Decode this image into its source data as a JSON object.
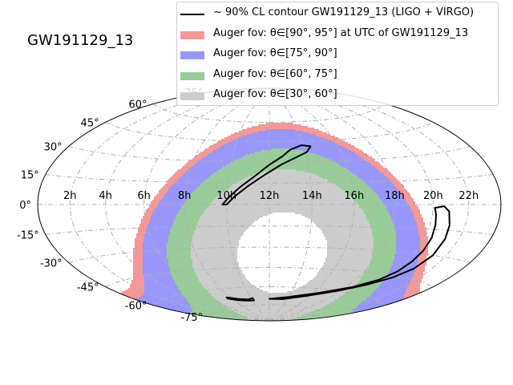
{
  "title": "GW191129_13",
  "colors": {
    "band_90_95": "#f89896",
    "band_75_90": "#9797fb",
    "band_60_75": "#98cc98",
    "band_30_60": "#cccccc",
    "contour": "#000000",
    "grid": "#b0b0b0"
  },
  "legend": [
    {
      "key": "contour",
      "type": "line",
      "label": "~ 90% CL contour GW191129_13 (LIGO + VIRGO)"
    },
    {
      "key": "band_90_95",
      "type": "patch",
      "label": "Auger fov: θ∈[90°, 95°] at UTC of GW191129_13"
    },
    {
      "key": "band_75_90",
      "type": "patch",
      "label": "Auger fov: θ∈[75°, 90°]"
    },
    {
      "key": "band_60_75",
      "type": "patch",
      "label": "Auger fov: θ∈[60°, 75°]"
    },
    {
      "key": "band_30_60",
      "type": "patch",
      "label": "Auger fov: θ∈[30°, 60°]"
    }
  ],
  "chart_data": {
    "type": "sky-map",
    "projection": "hammer-aitoff",
    "title": "GW191129_13",
    "ra_ticks": [
      "2h",
      "4h",
      "6h",
      "8h",
      "10h",
      "12h",
      "14h",
      "16h",
      "18h",
      "20h",
      "22h"
    ],
    "dec_ticks": [
      "-75°",
      "-60°",
      "-45°",
      "-30°",
      "-15°",
      "0°",
      "15°",
      "30°",
      "45°",
      "60°",
      "75°"
    ],
    "grid": true,
    "legend_position": "top-right",
    "auger_fov": {
      "center_ra_h": 12.7,
      "center_dec_deg": -35.2,
      "bands": [
        {
          "key": "band_90_95",
          "theta_min_deg": 90,
          "theta_max_deg": 95
        },
        {
          "key": "band_75_90",
          "theta_min_deg": 75,
          "theta_max_deg": 90
        },
        {
          "key": "band_60_75",
          "theta_min_deg": 60,
          "theta_max_deg": 75
        },
        {
          "key": "band_30_60",
          "theta_min_deg": 30,
          "theta_max_deg": 60
        }
      ]
    },
    "contour_regions": [
      {
        "name": "arc",
        "points": [
          [
            9.8,
            0
          ],
          [
            10.1,
            5
          ],
          [
            10.6,
            12
          ],
          [
            11.3,
            20
          ],
          [
            12,
            28
          ],
          [
            12.7,
            34
          ],
          [
            13.2,
            39
          ],
          [
            13.9,
            42
          ],
          [
            14.4,
            41
          ],
          [
            14.1,
            37
          ],
          [
            13.4,
            33
          ],
          [
            12.6,
            28
          ],
          [
            11.8,
            21
          ],
          [
            11.0,
            13
          ],
          [
            10.4,
            6
          ],
          [
            10.0,
            0
          ]
        ]
      },
      {
        "name": "east-strip",
        "points": [
          [
            20.1,
            -2
          ],
          [
            20.2,
            -6
          ],
          [
            20.3,
            -12
          ],
          [
            20.4,
            -20
          ],
          [
            20.4,
            -28
          ],
          [
            20.3,
            -35
          ],
          [
            20.1,
            -42
          ],
          [
            19.6,
            -49
          ],
          [
            18.5,
            -56
          ],
          [
            16.5,
            -63
          ],
          [
            14.0,
            -68
          ],
          [
            12.0,
            -70
          ],
          [
            13.5,
            -70
          ],
          [
            15.8,
            -66
          ],
          [
            17.8,
            -60
          ],
          [
            19.3,
            -53
          ],
          [
            20.3,
            -46
          ],
          [
            20.9,
            -39
          ],
          [
            21.2,
            -30
          ],
          [
            21.2,
            -20
          ],
          [
            21.1,
            -12
          ],
          [
            20.9,
            -4
          ],
          [
            20.6,
            -1
          ]
        ]
      },
      {
        "name": "south-blob",
        "points": [
          [
            7.6,
            -67
          ],
          [
            8.6,
            -69
          ],
          [
            9.6,
            -70
          ],
          [
            10.2,
            -69
          ],
          [
            10.2,
            -71
          ],
          [
            9.4,
            -71
          ],
          [
            8.4,
            -70
          ],
          [
            7.6,
            -68
          ]
        ]
      }
    ]
  }
}
